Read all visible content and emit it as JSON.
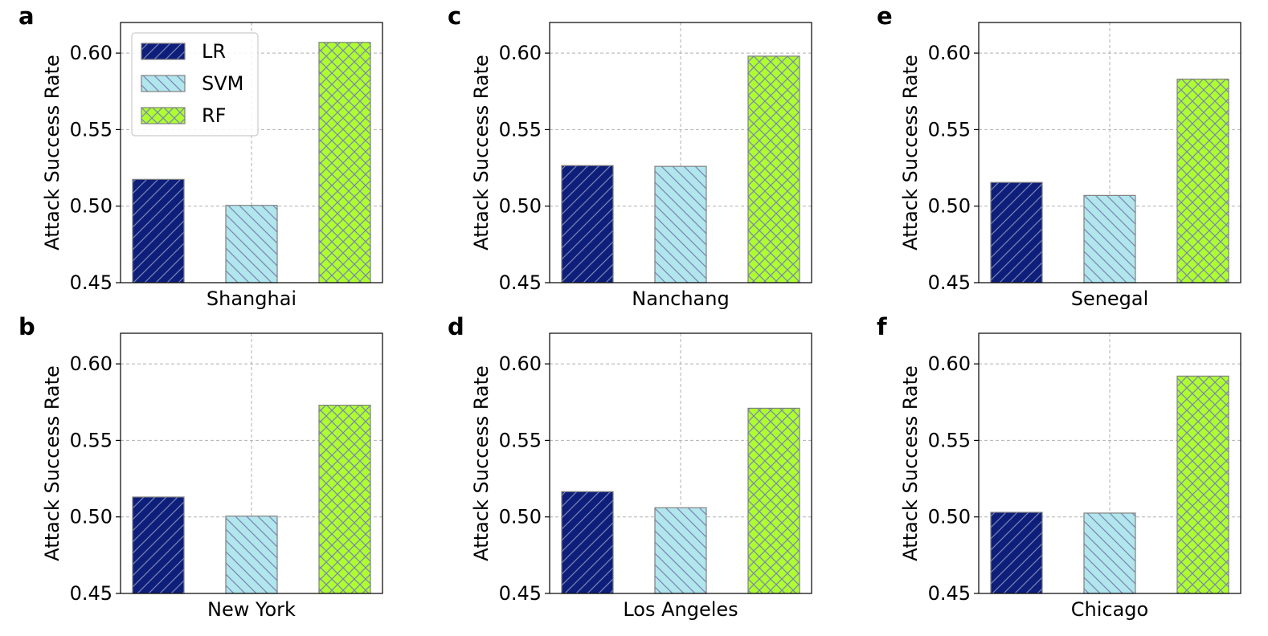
{
  "colors": {
    "LR": "#0d1f7a",
    "SVM": "#b0e6ec",
    "RF": "#adff2f",
    "hatch": "#7b83b4",
    "bar_edge": "#808080"
  },
  "legend": [
    {
      "key": "LR",
      "label": "LR",
      "pattern": "diag-fwd"
    },
    {
      "key": "SVM",
      "label": "SVM",
      "pattern": "diag-back"
    },
    {
      "key": "RF",
      "label": "RF",
      "pattern": "cross"
    }
  ],
  "chart_data": [
    {
      "type": "bar",
      "panel": "a",
      "title": "",
      "xlabel": "Shanghai",
      "ylabel": "Attack Success Rate",
      "ylim": [
        0.45,
        0.62
      ],
      "yticks": [
        "0.45",
        "0.50",
        "0.55",
        "0.60"
      ],
      "series": [
        {
          "name": "LR",
          "values": [
            0.5175
          ]
        },
        {
          "name": "SVM",
          "values": [
            0.5005
          ]
        },
        {
          "name": "RF",
          "values": [
            0.607
          ]
        }
      ],
      "legend_position": "upper-left"
    },
    {
      "type": "bar",
      "panel": "b",
      "title": "",
      "xlabel": "New York",
      "ylabel": "Attack Success Rate",
      "ylim": [
        0.45,
        0.62
      ],
      "yticks": [
        "0.45",
        "0.50",
        "0.55",
        "0.60"
      ],
      "series": [
        {
          "name": "LR",
          "values": [
            0.513
          ]
        },
        {
          "name": "SVM",
          "values": [
            0.5005
          ]
        },
        {
          "name": "RF",
          "values": [
            0.573
          ]
        }
      ]
    },
    {
      "type": "bar",
      "panel": "c",
      "title": "",
      "xlabel": "Nanchang",
      "ylabel": "Attack Success Rate",
      "ylim": [
        0.45,
        0.62
      ],
      "yticks": [
        "0.45",
        "0.50",
        "0.55",
        "0.60"
      ],
      "series": [
        {
          "name": "LR",
          "values": [
            0.5265
          ]
        },
        {
          "name": "SVM",
          "values": [
            0.526
          ]
        },
        {
          "name": "RF",
          "values": [
            0.598
          ]
        }
      ]
    },
    {
      "type": "bar",
      "panel": "d",
      "title": "",
      "xlabel": "Los Angeles",
      "ylabel": "Attack Success Rate",
      "ylim": [
        0.45,
        0.62
      ],
      "yticks": [
        "0.45",
        "0.50",
        "0.55",
        "0.60"
      ],
      "series": [
        {
          "name": "LR",
          "values": [
            0.5165
          ]
        },
        {
          "name": "SVM",
          "values": [
            0.506
          ]
        },
        {
          "name": "RF",
          "values": [
            0.571
          ]
        }
      ]
    },
    {
      "type": "bar",
      "panel": "e",
      "title": "",
      "xlabel": "Senegal",
      "ylabel": "Attack Success Rate",
      "ylim": [
        0.45,
        0.62
      ],
      "yticks": [
        "0.45",
        "0.50",
        "0.55",
        "0.60"
      ],
      "series": [
        {
          "name": "LR",
          "values": [
            0.5155
          ]
        },
        {
          "name": "SVM",
          "values": [
            0.507
          ]
        },
        {
          "name": "RF",
          "values": [
            0.583
          ]
        }
      ]
    },
    {
      "type": "bar",
      "panel": "f",
      "title": "",
      "xlabel": "Chicago",
      "ylabel": "Attack Success Rate",
      "ylim": [
        0.45,
        0.62
      ],
      "yticks": [
        "0.45",
        "0.50",
        "0.55",
        "0.60"
      ],
      "series": [
        {
          "name": "LR",
          "values": [
            0.503
          ]
        },
        {
          "name": "SVM",
          "values": [
            0.5025
          ]
        },
        {
          "name": "RF",
          "values": [
            0.592
          ]
        }
      ]
    }
  ]
}
